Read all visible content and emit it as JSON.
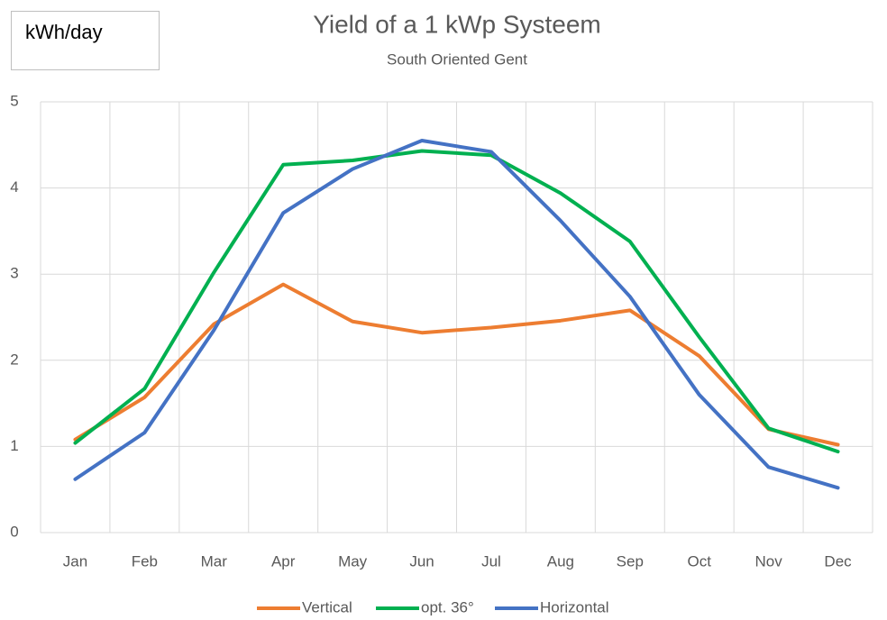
{
  "chart_data": {
    "type": "line",
    "title": "Yield of a 1 kWp Systeem",
    "subtitle": "South Oriented  Gent",
    "annotation": "kWh/day",
    "categories": [
      "Jan",
      "Feb",
      "Mar",
      "Apr",
      "May",
      "Jun",
      "Jul",
      "Aug",
      "Sep",
      "Oct",
      "Nov",
      "Dec"
    ],
    "series": [
      {
        "name": "Vertical",
        "color": "#ed7d31",
        "values": [
          1.08,
          1.57,
          2.42,
          2.88,
          2.45,
          2.32,
          2.38,
          2.46,
          2.58,
          2.05,
          1.2,
          1.02
        ]
      },
      {
        "name": "opt. 36°",
        "color": "#00b050",
        "values": [
          1.04,
          1.67,
          3.02,
          4.27,
          4.32,
          4.43,
          4.38,
          3.94,
          3.38,
          2.27,
          1.21,
          0.94
        ]
      },
      {
        "name": "Horizontal",
        "color": "#4472c4",
        "values": [
          0.62,
          1.16,
          2.35,
          3.71,
          4.22,
          4.55,
          4.42,
          3.62,
          2.74,
          1.6,
          0.76,
          0.52
        ]
      }
    ],
    "ylim": [
      0,
      5
    ],
    "yticks": [
      0,
      1,
      2,
      3,
      4,
      5
    ],
    "grid": true,
    "legend": "bottom"
  }
}
